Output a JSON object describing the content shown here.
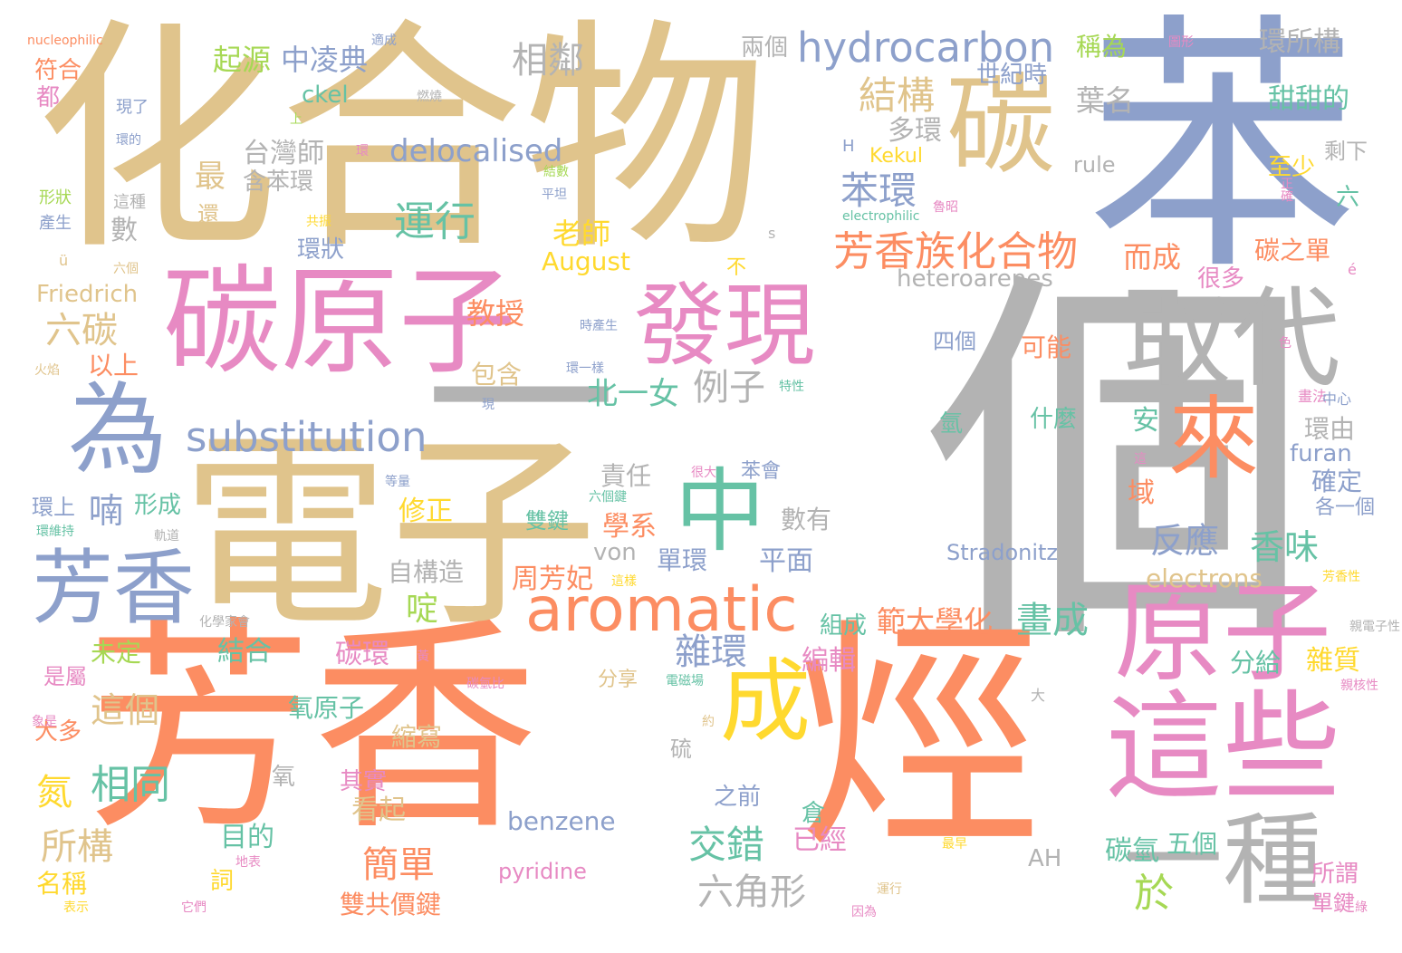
{
  "palette": {
    "tan": "#e0c48c",
    "orange": "#fc8d62",
    "blue": "#8da0cb",
    "pink": "#e78ac3",
    "teal": "#66c2a5",
    "gray": "#b3b3b3",
    "green": "#a6d854",
    "yellow": "#ffd92f"
  },
  "words": [
    {
      "text": "化合物",
      "color": "#e0c48c"
    },
    {
      "text": "苯",
      "color": "#8da0cb"
    },
    {
      "text": "個",
      "color": "#b3b3b3"
    },
    {
      "text": "芳香",
      "color": "#fc8d62"
    },
    {
      "text": "烴",
      "color": "#fc8d62"
    },
    {
      "text": "電子",
      "color": "#e0c48c"
    },
    {
      "text": "一",
      "color": "#b3b3b3"
    },
    {
      "text": "碳原子",
      "color": "#e78ac3"
    },
    {
      "text": "碳",
      "color": "#e0c48c"
    },
    {
      "text": "取代",
      "color": "#b3b3b3"
    },
    {
      "text": "發現",
      "color": "#e78ac3"
    },
    {
      "text": "原子",
      "color": "#e78ac3"
    },
    {
      "text": "這些",
      "color": "#e78ac3"
    },
    {
      "text": "為",
      "color": "#8da0cb"
    },
    {
      "text": "芳香",
      "color": "#8da0cb"
    },
    {
      "text": "來",
      "color": "#fc8d62"
    },
    {
      "text": "中",
      "color": "#66c2a5"
    },
    {
      "text": "成",
      "color": "#ffd92f"
    },
    {
      "text": "一種",
      "color": "#b3b3b3"
    },
    {
      "text": "aromatic",
      "color": "#fc8d62"
    },
    {
      "text": "hydrocarbon",
      "color": "#8da0cb"
    },
    {
      "text": "substitution",
      "color": "#8da0cb"
    },
    {
      "text": "芳香族化合物",
      "color": "#fc8d62"
    },
    {
      "text": "delocalised",
      "color": "#8da0cb"
    },
    {
      "text": "運行",
      "color": "#66c2a5"
    },
    {
      "text": "結構",
      "color": "#e0c48c"
    },
    {
      "text": "苯環",
      "color": "#8da0cb"
    },
    {
      "text": "相鄰",
      "color": "#b3b3b3"
    },
    {
      "text": "中凌典",
      "color": "#8da0cb"
    },
    {
      "text": "起源",
      "color": "#a6d854"
    },
    {
      "text": "環所構",
      "color": "#b3b3b3"
    },
    {
      "text": "甜甜的",
      "color": "#66c2a5"
    },
    {
      "text": "葉名",
      "color": "#b3b3b3"
    },
    {
      "text": "稱為",
      "color": "#a6d854"
    },
    {
      "text": "兩個",
      "color": "#b3b3b3"
    },
    {
      "text": "世紀時",
      "color": "#8da0cb"
    },
    {
      "text": "多環",
      "color": "#b3b3b3"
    },
    {
      "text": "台灣師",
      "color": "#b3b3b3"
    },
    {
      "text": "含苯環",
      "color": "#b3b3b3"
    },
    {
      "text": "最",
      "color": "#e0c48c"
    },
    {
      "text": "六碳",
      "color": "#e0c48c"
    },
    {
      "text": "以上",
      "color": "#fc8d62"
    },
    {
      "text": "例子",
      "color": "#b3b3b3"
    },
    {
      "text": "北一女",
      "color": "#66c2a5"
    },
    {
      "text": "教授",
      "color": "#fc8d62"
    },
    {
      "text": "包含",
      "color": "#e0c48c"
    },
    {
      "text": "老師",
      "color": "#ffd92f"
    },
    {
      "text": "August",
      "color": "#ffd92f"
    },
    {
      "text": "Friedrich",
      "color": "#e0c48c"
    },
    {
      "text": "heteroarenes",
      "color": "#b3b3b3"
    },
    {
      "text": "而成",
      "color": "#fc8d62"
    },
    {
      "text": "碳之單",
      "color": "#fc8d62"
    },
    {
      "text": "很多",
      "color": "#e78ac3"
    },
    {
      "text": "至少",
      "color": "#ffd92f"
    },
    {
      "text": "剩下",
      "color": "#b3b3b3"
    },
    {
      "text": "六",
      "color": "#66c2a5"
    },
    {
      "text": "rule",
      "color": "#b3b3b3"
    },
    {
      "text": "Kekul",
      "color": "#ffd92f"
    },
    {
      "text": "ckel",
      "color": "#66c2a5"
    },
    {
      "text": "四個",
      "color": "#8da0cb"
    },
    {
      "text": "可能",
      "color": "#fc8d62"
    },
    {
      "text": "什麼",
      "color": "#66c2a5"
    },
    {
      "text": "氫",
      "color": "#66c2a5"
    },
    {
      "text": "安",
      "color": "#66c2a5"
    },
    {
      "text": "環由",
      "color": "#b3b3b3"
    },
    {
      "text": "furan",
      "color": "#8da0cb"
    },
    {
      "text": "確定",
      "color": "#8da0cb"
    },
    {
      "text": "各一個",
      "color": "#8da0cb"
    },
    {
      "text": "域",
      "color": "#fc8d62"
    },
    {
      "text": "反應",
      "color": "#8da0cb"
    },
    {
      "text": "香味",
      "color": "#66c2a5"
    },
    {
      "text": "責任",
      "color": "#b3b3b3"
    },
    {
      "text": "學系",
      "color": "#fc8d62"
    },
    {
      "text": "喃",
      "color": "#8da0cb"
    },
    {
      "text": "形成",
      "color": "#66c2a5"
    },
    {
      "text": "數有",
      "color": "#b3b3b3"
    },
    {
      "text": "修正",
      "color": "#ffd92f"
    },
    {
      "text": "雙鍵",
      "color": "#66c2a5"
    },
    {
      "text": "周芳妃",
      "color": "#fc8d62"
    },
    {
      "text": "單環",
      "color": "#8da0cb"
    },
    {
      "text": "平面",
      "color": "#8da0cb"
    },
    {
      "text": "自構造",
      "color": "#b3b3b3"
    },
    {
      "text": "von",
      "color": "#b3b3b3"
    },
    {
      "text": "electrons",
      "color": "#e0c48c"
    },
    {
      "text": "Stradonitz",
      "color": "#8da0cb"
    },
    {
      "text": "啶",
      "color": "#a6d854"
    },
    {
      "text": "畫成",
      "color": "#66c2a5"
    },
    {
      "text": "雜環",
      "color": "#8da0cb"
    },
    {
      "text": "範大學化",
      "color": "#fc8d62"
    },
    {
      "text": "組成",
      "color": "#66c2a5"
    },
    {
      "text": "編輯",
      "color": "#e78ac3"
    },
    {
      "text": "未定",
      "color": "#a6d854"
    },
    {
      "text": "結合",
      "color": "#66c2a5"
    },
    {
      "text": "碳環",
      "color": "#e78ac3"
    },
    {
      "text": "是屬",
      "color": "#e78ac3"
    },
    {
      "text": "這個",
      "color": "#e0c48c"
    },
    {
      "text": "氧原子",
      "color": "#66c2a5"
    },
    {
      "text": "大多",
      "color": "#fc8d62"
    },
    {
      "text": "縮寫",
      "color": "#e0c48c"
    },
    {
      "text": "相同",
      "color": "#66c2a5"
    },
    {
      "text": "氮",
      "color": "#ffd92f"
    },
    {
      "text": "所構",
      "color": "#e0c48c"
    },
    {
      "text": "名稱",
      "color": "#ffd92f"
    },
    {
      "text": "目的",
      "color": "#66c2a5"
    },
    {
      "text": "詞",
      "color": "#ffd92f"
    },
    {
      "text": "看起",
      "color": "#e0c48c"
    },
    {
      "text": "其實",
      "color": "#e78ac3"
    },
    {
      "text": "簡單",
      "color": "#fc8d62"
    },
    {
      "text": "雙共價鍵",
      "color": "#fc8d62"
    },
    {
      "text": "交錯",
      "color": "#66c2a5"
    },
    {
      "text": "六角形",
      "color": "#b3b3b3"
    },
    {
      "text": "之前",
      "color": "#8da0cb"
    },
    {
      "text": "benzene",
      "color": "#8da0cb"
    },
    {
      "text": "pyridine",
      "color": "#e78ac3"
    },
    {
      "text": "已經",
      "color": "#e78ac3"
    },
    {
      "text": "倉",
      "color": "#66c2a5"
    },
    {
      "text": "AH",
      "color": "#b3b3b3"
    },
    {
      "text": "碳氫",
      "color": "#66c2a5"
    },
    {
      "text": "五個",
      "color": "#66c2a5"
    },
    {
      "text": "於",
      "color": "#a6d854"
    },
    {
      "text": "分給",
      "color": "#66c2a5"
    },
    {
      "text": "雜質",
      "color": "#ffd92f"
    },
    {
      "text": "所謂",
      "color": "#e78ac3"
    },
    {
      "text": "單鍵",
      "color": "#e78ac3"
    },
    {
      "text": "符合",
      "color": "#fc8d62"
    },
    {
      "text": "都",
      "color": "#e78ac3"
    },
    {
      "text": "現了",
      "color": "#8da0cb"
    },
    {
      "text": "形狀",
      "color": "#a6d854"
    },
    {
      "text": "產生",
      "color": "#8da0cb"
    },
    {
      "text": "數",
      "color": "#b3b3b3"
    },
    {
      "text": "還",
      "color": "#e0c48c"
    },
    {
      "text": "環狀",
      "color": "#8da0cb"
    },
    {
      "text": "不",
      "color": "#ffd92f"
    },
    {
      "text": "H",
      "color": "#8da0cb"
    },
    {
      "text": "nucleophilic",
      "color": "#fc8d62"
    },
    {
      "text": "electrophilic",
      "color": "#66c2a5"
    },
    {
      "text": "ü",
      "color": "#e0c48c"
    },
    {
      "text": "é",
      "color": "#e78ac3"
    },
    {
      "text": "s",
      "color": "#b3b3b3"
    },
    {
      "text": "適成",
      "color": "#8da0cb"
    },
    {
      "text": "燃燒",
      "color": "#b3b3b3"
    },
    {
      "text": "圖形",
      "color": "#e78ac3"
    },
    {
      "text": "上",
      "color": "#a6d854"
    },
    {
      "text": "環的",
      "color": "#8da0cb"
    },
    {
      "text": "這種",
      "color": "#b3b3b3"
    },
    {
      "text": "環",
      "color": "#e78ac3"
    },
    {
      "text": "結數",
      "color": "#a6d854"
    },
    {
      "text": "平坦",
      "color": "#8da0cb"
    },
    {
      "text": "共振",
      "color": "#ffd92f"
    },
    {
      "text": "氫比大",
      "color": "#e0c48c"
    },
    {
      "text": "六個",
      "color": "#e0c48c"
    },
    {
      "text": "正確",
      "color": "#e78ac3"
    },
    {
      "text": "魯昭",
      "color": "#e78ac3"
    },
    {
      "text": "時產生",
      "color": "#8da0cb"
    },
    {
      "text": "色",
      "color": "#e78ac3"
    },
    {
      "text": "火焰",
      "color": "#e0c48c"
    },
    {
      "text": "現",
      "color": "#8da0cb"
    },
    {
      "text": "環一樣",
      "color": "#8da0cb"
    },
    {
      "text": "特性",
      "color": "#66c2a5"
    },
    {
      "text": "畫法",
      "color": "#e78ac3"
    },
    {
      "text": "中心",
      "color": "#8da0cb"
    },
    {
      "text": "等量",
      "color": "#8da0cb"
    },
    {
      "text": "很大",
      "color": "#e78ac3"
    },
    {
      "text": "苯會",
      "color": "#8da0cb"
    },
    {
      "text": "這",
      "color": "#e78ac3"
    },
    {
      "text": "環上",
      "color": "#8da0cb"
    },
    {
      "text": "環維持",
      "color": "#66c2a5"
    },
    {
      "text": "軌道",
      "color": "#b3b3b3"
    },
    {
      "text": "六個鍵",
      "color": "#66c2a5"
    },
    {
      "text": "這樣",
      "color": "#ffd92f"
    },
    {
      "text": "芳香性",
      "color": "#ffd92f"
    },
    {
      "text": "化學家會",
      "color": "#b3b3b3"
    },
    {
      "text": "親電子性",
      "color": "#b3b3b3"
    },
    {
      "text": "黃",
      "color": "#e78ac3"
    },
    {
      "text": "碳氫比",
      "color": "#e78ac3"
    },
    {
      "text": "分享",
      "color": "#e0c48c"
    },
    {
      "text": "電磁場",
      "color": "#66c2a5"
    },
    {
      "text": "大",
      "color": "#b3b3b3"
    },
    {
      "text": "約",
      "color": "#e0c48c"
    },
    {
      "text": "親核性",
      "color": "#e78ac3"
    },
    {
      "text": "象是",
      "color": "#e78ac3"
    },
    {
      "text": "硫",
      "color": "#b3b3b3"
    },
    {
      "text": "氧",
      "color": "#b3b3b3"
    },
    {
      "text": "地表",
      "color": "#e78ac3"
    },
    {
      "text": "它們",
      "color": "#e78ac3"
    },
    {
      "text": "表示",
      "color": "#ffd92f"
    },
    {
      "text": "最早",
      "color": "#ffd92f"
    },
    {
      "text": "運行",
      "color": "#e0c48c"
    },
    {
      "text": "因為",
      "color": "#e78ac3"
    },
    {
      "text": "綠",
      "color": "#e78ac3"
    }
  ]
}
